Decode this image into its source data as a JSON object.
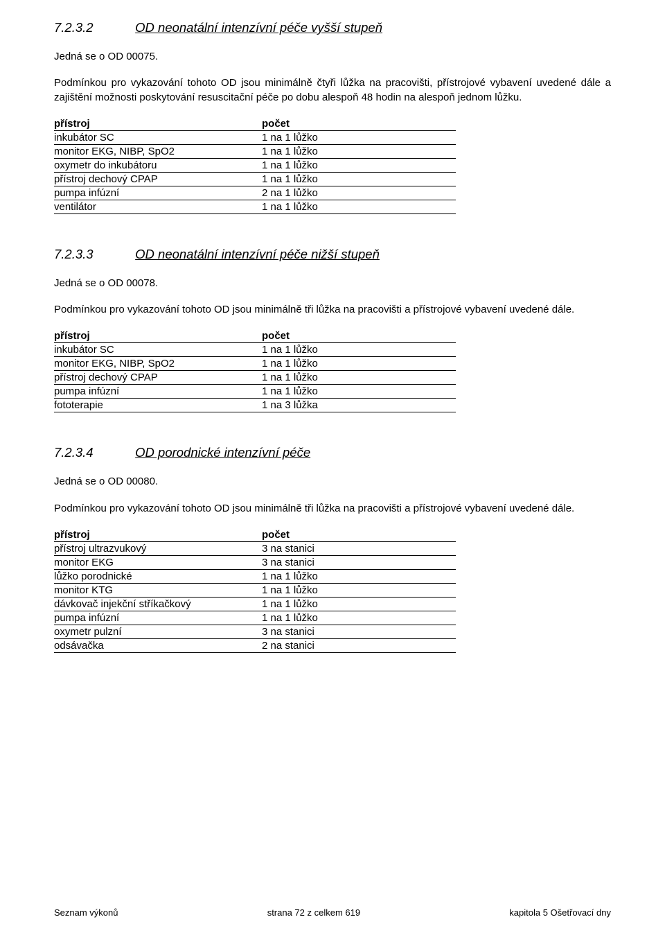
{
  "sections": [
    {
      "num": "7.2.3.2",
      "title": "OD neonatální intenzívní péče vyšší stupeň",
      "intro": "Jedná se o OD 00075.",
      "cond": "Podmínkou pro vykazování tohoto OD jsou minimálně čtyři lůžka na pracovišti, přístrojové vybavení uvedené dále a zajištění možnosti poskytování resuscitační péče po dobu alespoň 48 hodin na alespoň jednom lůžku.",
      "table": {
        "header": {
          "c1": "přístroj",
          "c2": "počet"
        },
        "rows": [
          {
            "c1": "inkubátor SC",
            "c2": "1 na 1 lůžko"
          },
          {
            "c1": "monitor EKG, NIBP, SpO2",
            "c2": "1 na 1 lůžko"
          },
          {
            "c1": "oxymetr do inkubátoru",
            "c2": "1 na 1 lůžko"
          },
          {
            "c1": "přístroj dechový CPAP",
            "c2": "1 na 1 lůžko"
          },
          {
            "c1": "pumpa infúzní",
            "c2": "2 na 1 lůžko"
          },
          {
            "c1": "ventilátor",
            "c2": "1 na 1 lůžko"
          }
        ]
      }
    },
    {
      "num": "7.2.3.3",
      "title": "OD neonatální intenzívní péče nižší stupeň",
      "intro": "Jedná se o OD 00078.",
      "cond": "Podmínkou pro vykazování tohoto OD jsou minimálně tři lůžka na pracovišti a přístrojové vybavení uvedené dále.",
      "table": {
        "header": {
          "c1": "přístroj",
          "c2": "počet"
        },
        "rows": [
          {
            "c1": "inkubátor SC",
            "c2": "1 na 1 lůžko"
          },
          {
            "c1": "monitor EKG, NIBP, SpO2",
            "c2": "1 na 1 lůžko"
          },
          {
            "c1": "přístroj dechový CPAP",
            "c2": "1 na 1 lůžko"
          },
          {
            "c1": "pumpa infúzní",
            "c2": "1 na 1 lůžko"
          },
          {
            "c1": "fototerapie",
            "c2": "1 na 3 lůžka"
          }
        ]
      }
    },
    {
      "num": "7.2.3.4",
      "title": "OD porodnické intenzívní péče",
      "intro": "Jedná se o OD 00080.",
      "cond": "Podmínkou pro vykazování tohoto OD jsou minimálně tři lůžka na pracovišti a přístrojové vybavení uvedené dále.",
      "table": {
        "header": {
          "c1": "přístroj",
          "c2": "počet"
        },
        "rows": [
          {
            "c1": "přístroj ultrazvukový",
            "c2": "3 na stanici"
          },
          {
            "c1": "monitor EKG",
            "c2": "3 na stanici"
          },
          {
            "c1": "lůžko porodnické",
            "c2": "1 na 1 lůžko"
          },
          {
            "c1": "monitor KTG",
            "c2": "1 na 1 lůžko"
          },
          {
            "c1": "dávkovač injekční stříkačkový",
            "c2": "1 na 1 lůžko"
          },
          {
            "c1": "pumpa infúzní",
            "c2": "1 na 1 lůžko"
          },
          {
            "c1": "oxymetr pulzní",
            "c2": "3 na stanici"
          },
          {
            "c1": "odsávačka",
            "c2": "2 na stanici"
          }
        ]
      }
    }
  ],
  "footer": {
    "left": "Seznam výkonů",
    "center": "strana 72 z celkem 619",
    "right": "kapitola 5  Ošetřovací dny"
  }
}
